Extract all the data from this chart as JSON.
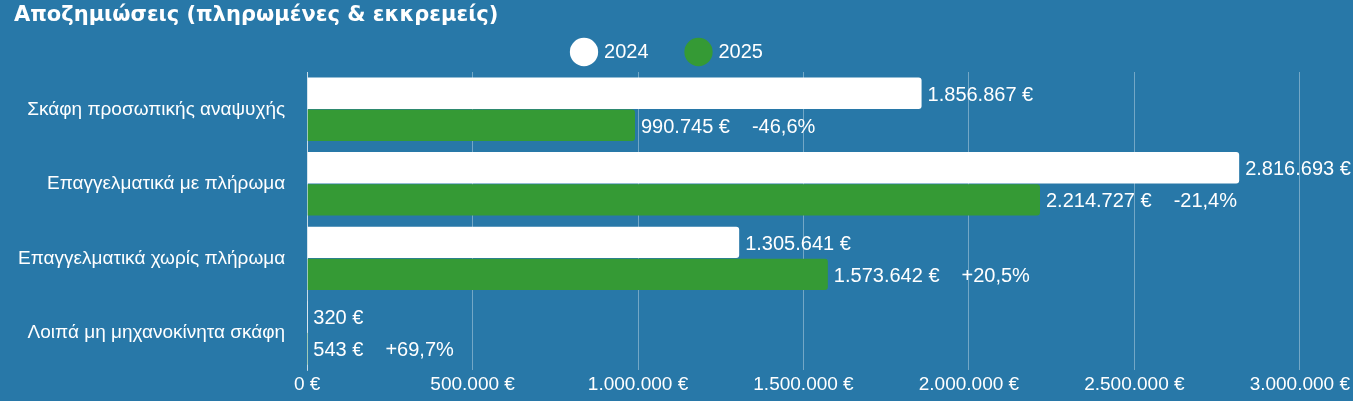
{
  "chart_data": {
    "type": "bar",
    "orientation": "horizontal",
    "title": "Αποζημιώσεις (πληρωμένες & εκκρεμείς)",
    "categories": [
      "Σκάφη προσωπικής αναψυχής",
      "Επαγγελματικά με πλήρωμα",
      "Επαγγελματικά χωρίς πλήρωμα",
      "Λοιπά μη μηχανοκίνητα σκάφη"
    ],
    "series": [
      {
        "name": "2024",
        "color": "#ffffff",
        "values": [
          1856867,
          2816693,
          1305641,
          320
        ],
        "value_labels": [
          "1.856.867 €",
          "2.816.693 €",
          "1.305.641 €",
          "320 €"
        ]
      },
      {
        "name": "2025",
        "color": "#359a35",
        "values": [
          990745,
          2214727,
          1573642,
          543
        ],
        "value_labels": [
          "990.745 €",
          "2.214.727 €",
          "1.573.642 €",
          "543 €"
        ]
      }
    ],
    "xlim": [
      0,
      3000000
    ],
    "xticks": [
      {
        "value": 0,
        "label": "0 €"
      },
      {
        "value": 500000,
        "label": "500.000 €"
      },
      {
        "value": 1000000,
        "label": "1.000.000 €"
      },
      {
        "value": 1500000,
        "label": "1.500.000 €"
      },
      {
        "value": 2000000,
        "label": "2.000.000 €"
      },
      {
        "value": 2500000,
        "label": "2.500.000 €"
      },
      {
        "value": 3000000,
        "label": "3.000.000 €"
      }
    ],
    "grid": "x",
    "legend": "top",
    "marker": "circle",
    "annotations": [
      "-46,6%",
      "-21,4%",
      "+20,5%",
      "+69,7%"
    ]
  }
}
